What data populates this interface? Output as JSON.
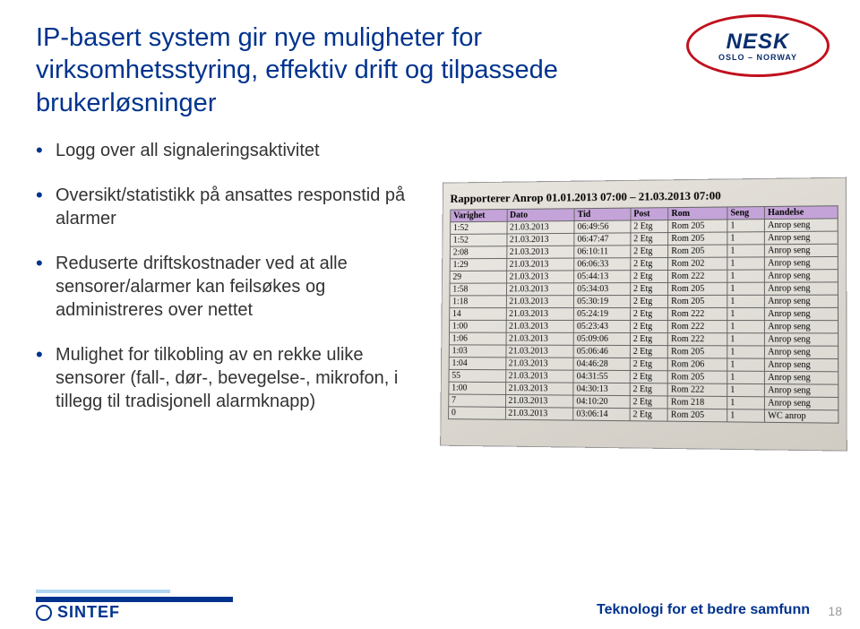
{
  "title": "IP-basert system gir nye muligheter for virksomhetsstyring, effektiv drift og tilpassede brukerløsninger",
  "bullets": [
    "Logg over all signaleringsaktivitet",
    "Oversikt/statistikk på ansattes responstid på alarmer",
    "Reduserte driftskostnader ved at alle sensorer/alarmer kan feilsøkes og administreres over nettet",
    "Mulighet for tilkobling av en rekke ulike sensorer (fall-, dør-, bevegelse-, mikrofon, i tillegg til tradisjonell alarmknapp)"
  ],
  "logo": {
    "brand": "NESK",
    "sub": "OSLO – NORWAY"
  },
  "report": {
    "title": "Rapporterer Anrop 01.01.2013 07:00 – 21.03.2013 07:00",
    "columns": [
      "Varighet",
      "Dato",
      "Tid",
      "Post",
      "Rom",
      "Seng",
      "Handelse"
    ],
    "rows": [
      [
        "1:52",
        "21.03.2013",
        "06:49:56",
        "2 Etg",
        "Rom 205",
        "1",
        "Anrop seng"
      ],
      [
        "1:52",
        "21.03.2013",
        "06:47:47",
        "2 Etg",
        "Rom 205",
        "1",
        "Anrop seng"
      ],
      [
        "2:08",
        "21.03.2013",
        "06:10:11",
        "2 Etg",
        "Rom 205",
        "1",
        "Anrop seng"
      ],
      [
        "1:29",
        "21.03.2013",
        "06:06:33",
        "2 Etg",
        "Rom 202",
        "1",
        "Anrop seng"
      ],
      [
        "29",
        "21.03.2013",
        "05:44:13",
        "2 Etg",
        "Rom 222",
        "1",
        "Anrop seng"
      ],
      [
        "1:58",
        "21.03.2013",
        "05:34:03",
        "2 Etg",
        "Rom 205",
        "1",
        "Anrop seng"
      ],
      [
        "1:18",
        "21.03.2013",
        "05:30:19",
        "2 Etg",
        "Rom 205",
        "1",
        "Anrop seng"
      ],
      [
        "14",
        "21.03.2013",
        "05:24:19",
        "2 Etg",
        "Rom 222",
        "1",
        "Anrop seng"
      ],
      [
        "1:00",
        "21.03.2013",
        "05:23:43",
        "2 Etg",
        "Rom 222",
        "1",
        "Anrop seng"
      ],
      [
        "1:06",
        "21.03.2013",
        "05:09:06",
        "2 Etg",
        "Rom 222",
        "1",
        "Anrop seng"
      ],
      [
        "1:03",
        "21.03.2013",
        "05:06:46",
        "2 Etg",
        "Rom 205",
        "1",
        "Anrop seng"
      ],
      [
        "1:04",
        "21.03.2013",
        "04:46:28",
        "2 Etg",
        "Rom 206",
        "1",
        "Anrop seng"
      ],
      [
        "55",
        "21.03.2013",
        "04:31:55",
        "2 Etg",
        "Rom 205",
        "1",
        "Anrop seng"
      ],
      [
        "1:00",
        "21.03.2013",
        "04:30:13",
        "2 Etg",
        "Rom 222",
        "1",
        "Anrop seng"
      ],
      [
        "7",
        "21.03.2013",
        "04:10:20",
        "2 Etg",
        "Rom 218",
        "1",
        "Anrop seng"
      ],
      [
        "0",
        "21.03.2013",
        "03:06:14",
        "2 Etg",
        "Rom 205",
        "1",
        "WC anrop"
      ]
    ]
  },
  "footer": {
    "brand": "SINTEF",
    "tagline": "Teknologi for et bedre samfunn",
    "page": "18"
  }
}
